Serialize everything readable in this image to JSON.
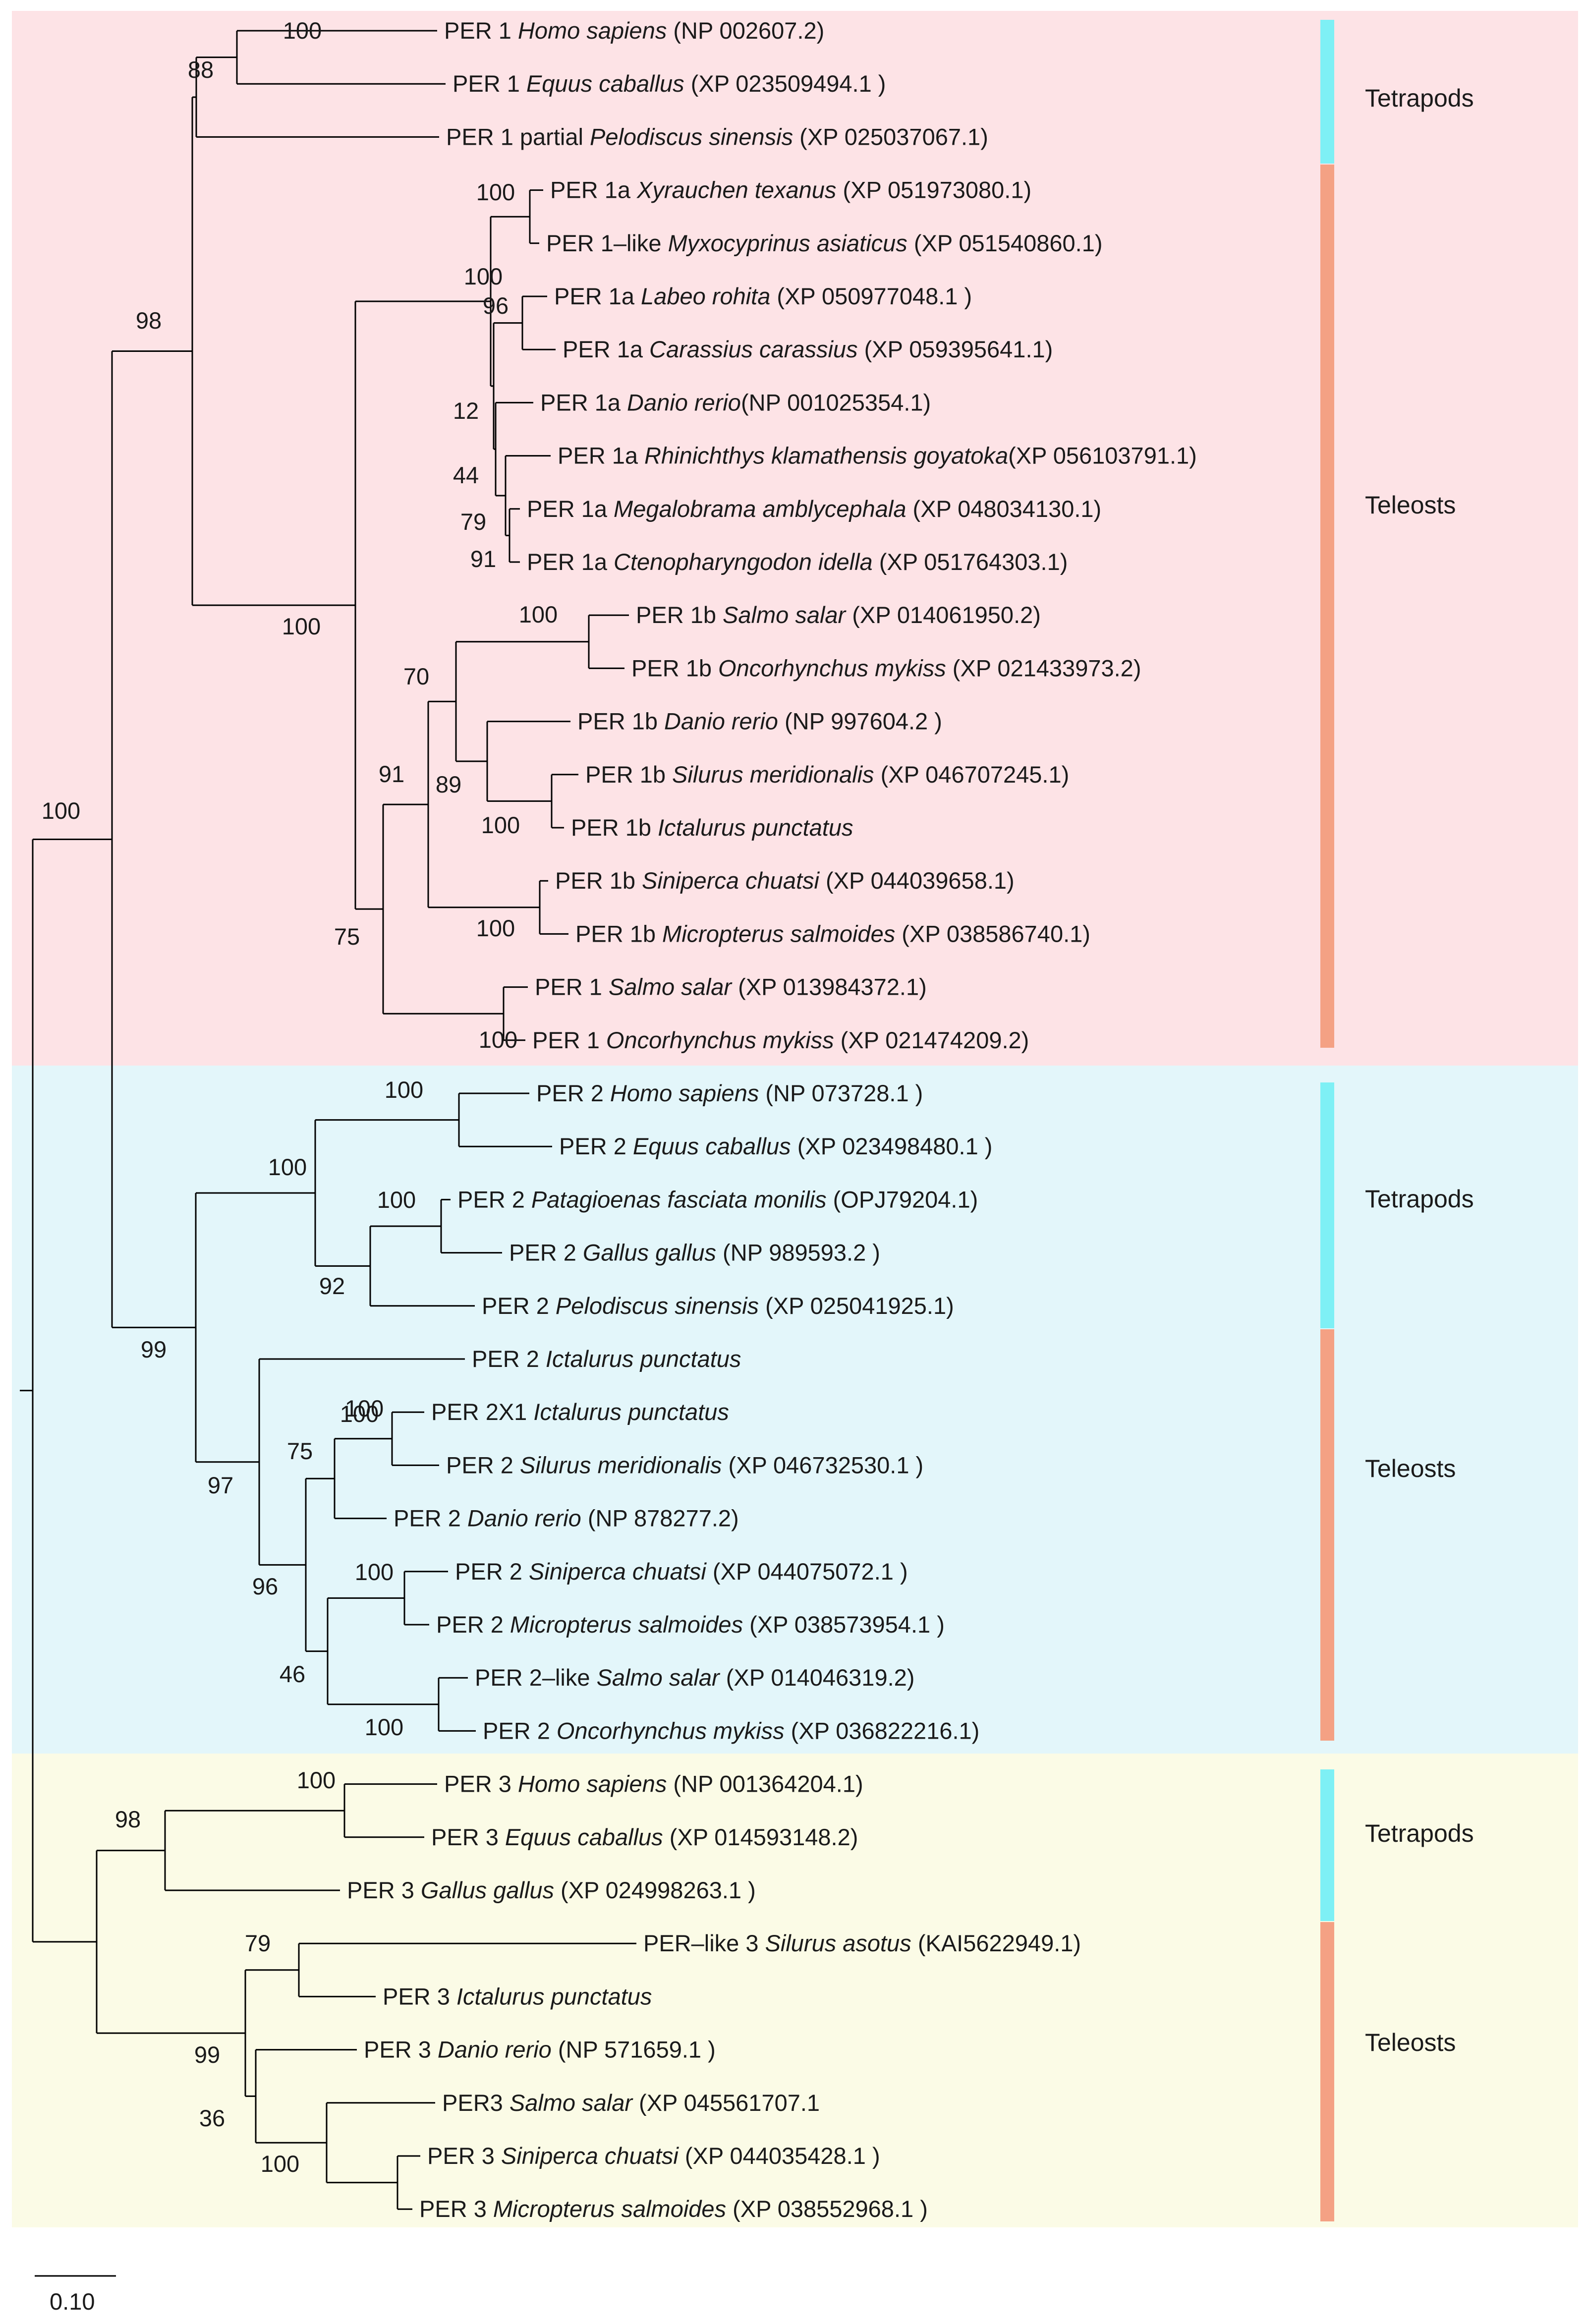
{
  "colors": {
    "per1_band": "#fde3e6",
    "per2_band": "#e3f6fa",
    "per3_band": "#fbfbe6",
    "tetrapods_bar": "#7ef0f5",
    "teleosts_bar": "#f4a184"
  },
  "groups": {
    "per1_tetrapods": "Tetrapods",
    "per1_teleosts": "Teleosts",
    "per2_tetrapods": "Tetrapods",
    "per2_teleosts": "Teleosts",
    "per3_tetrapods": "Tetrapods",
    "per3_teleosts": "Teleosts"
  },
  "scale_label": "0.10",
  "tips": [
    {
      "pre": "PER 1 ",
      "sp": "Homo sapiens",
      "post": " (NP 002607.2)"
    },
    {
      "pre": "PER 1 ",
      "sp": "Equus caballus",
      "post": " (XP 023509494.1 )"
    },
    {
      "pre": "PER 1 partial ",
      "sp": "Pelodiscus sinensis",
      "post": " (XP 025037067.1)"
    },
    {
      "pre": "PER 1a ",
      "sp": "Xyrauchen texanus",
      "post": " (XP 051973080.1)"
    },
    {
      "pre": "PER 1–like ",
      "sp": "Myxocyprinus asiaticus",
      "post": " (XP 051540860.1)"
    },
    {
      "pre": "PER 1a ",
      "sp": "Labeo rohita",
      "post": " (XP 050977048.1 )"
    },
    {
      "pre": "PER 1a ",
      "sp": "Carassius carassius",
      "post": " (XP 059395641.1)"
    },
    {
      "pre": "PER 1a ",
      "sp": "Danio rerio",
      "post": "(NP 001025354.1)"
    },
    {
      "pre": "PER 1a ",
      "sp": "Rhinichthys klamathensis goyatoka",
      "post": "(XP 056103791.1)"
    },
    {
      "pre": "PER 1a ",
      "sp": "Megalobrama amblycephala",
      "post": " (XP 048034130.1)"
    },
    {
      "pre": "PER 1a ",
      "sp": "Ctenopharyngodon idella",
      "post": " (XP 051764303.1)"
    },
    {
      "pre": "PER 1b ",
      "sp": "Salmo salar",
      "post": " (XP 014061950.2)"
    },
    {
      "pre": "PER 1b ",
      "sp": "Oncorhynchus mykiss",
      "post": " (XP 021433973.2)"
    },
    {
      "pre": "PER 1b ",
      "sp": "Danio rerio",
      "post": " (NP 997604.2 )"
    },
    {
      "pre": "PER 1b ",
      "sp": "Silurus meridionalis",
      "post": " (XP 046707245.1)"
    },
    {
      "pre": "PER 1b ",
      "sp": "Ictalurus punctatus",
      "post": ""
    },
    {
      "pre": "PER 1b ",
      "sp": "Siniperca chuatsi",
      "post": " (XP 044039658.1)"
    },
    {
      "pre": "PER 1b ",
      "sp": "Micropterus salmoides",
      "post": " (XP 038586740.1)"
    },
    {
      "pre": "PER 1 ",
      "sp": "Salmo salar",
      "post": " (XP 013984372.1)"
    },
    {
      "pre": "PER 1 ",
      "sp": "Oncorhynchus mykiss",
      "post": " (XP 021474209.2)"
    },
    {
      "pre": "PER 2 ",
      "sp": "Homo sapiens",
      "post": " (NP 073728.1 )"
    },
    {
      "pre": "PER 2 ",
      "sp": "Equus caballus",
      "post": " (XP 023498480.1 )"
    },
    {
      "pre": "PER 2 ",
      "sp": "Patagioenas fasciata monilis",
      "post": " (OPJ79204.1)"
    },
    {
      "pre": "PER 2 ",
      "sp": "Gallus gallus",
      "post": " (NP 989593.2 )"
    },
    {
      "pre": "PER 2 ",
      "sp": "Pelodiscus sinensis",
      "post": " (XP 025041925.1)"
    },
    {
      "pre": "PER 2 ",
      "sp": "Ictalurus punctatus",
      "post": ""
    },
    {
      "pre": "PER 2X1 ",
      "sp": "Ictalurus punctatus",
      "post": ""
    },
    {
      "pre": "PER 2 ",
      "sp": "Silurus meridionalis",
      "post": " (XP 046732530.1 )"
    },
    {
      "pre": "PER 2 ",
      "sp": "Danio rerio",
      "post": " (NP 878277.2)"
    },
    {
      "pre": "PER 2 ",
      "sp": "Siniperca chuatsi",
      "post": " (XP 044075072.1 )"
    },
    {
      "pre": "PER 2 ",
      "sp": "Micropterus salmoides",
      "post": " (XP 038573954.1 )"
    },
    {
      "pre": "PER 2–like ",
      "sp": "Salmo salar",
      "post": " (XP 014046319.2)"
    },
    {
      "pre": "PER 2 ",
      "sp": "Oncorhynchus mykiss",
      "post": " (XP 036822216.1)"
    },
    {
      "pre": "PER 3 ",
      "sp": "Homo sapiens",
      "post": " (NP 001364204.1)"
    },
    {
      "pre": "PER 3 ",
      "sp": "Equus caballus",
      "post": " (XP 014593148.2)"
    },
    {
      "pre": "PER 3 ",
      "sp": "Gallus gallus",
      "post": " (XP 024998263.1 )"
    },
    {
      "pre": "PER–like 3 ",
      "sp": "Silurus asotus",
      "post": " (KAI5622949.1)"
    },
    {
      "pre": "PER 3 ",
      "sp": "Ictalurus punctatus",
      "post": ""
    },
    {
      "pre": "PER 3 ",
      "sp": "Danio rerio",
      "post": " (NP 571659.1 )"
    },
    {
      "pre": "PER3 ",
      "sp": "Salmo salar",
      "post": " (XP 045561707.1"
    },
    {
      "pre": "PER 3 ",
      "sp": "Siniperca chuatsi",
      "post": " (XP 044035428.1 )"
    },
    {
      "pre": "PER 3 ",
      "sp": "Micropterus salmoides",
      "post": " (XP 038552968.1 )"
    }
  ],
  "bootstraps": [
    "100",
    "88",
    "100",
    "100",
    "96",
    "12",
    "44",
    "79",
    "91",
    "100",
    "70",
    "89",
    "100",
    "91",
    "100",
    "100",
    "75",
    "100",
    "98",
    "100",
    "100",
    "92",
    "100",
    "100",
    "75",
    "100",
    "46",
    "96",
    "100",
    "97",
    "99",
    "100",
    "100",
    "98",
    "79",
    "100",
    "36",
    "99",
    "100"
  ]
}
